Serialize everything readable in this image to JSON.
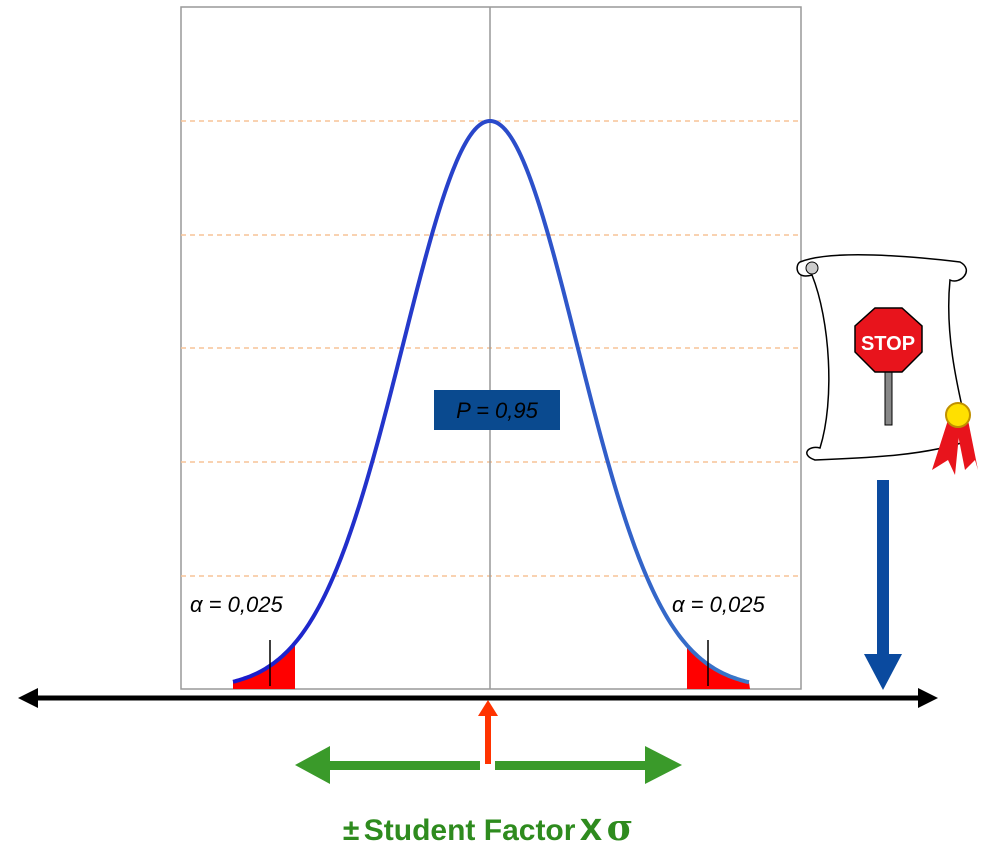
{
  "probability_label": "P = 0,95",
  "tail_labels": [
    "α = 0,025",
    "α = 0,025"
  ],
  "bottom_label": {
    "plus_minus": "±",
    "text": "Student Factor",
    "times": "x",
    "sigma": "σ"
  },
  "sign_text": "STOP"
}
